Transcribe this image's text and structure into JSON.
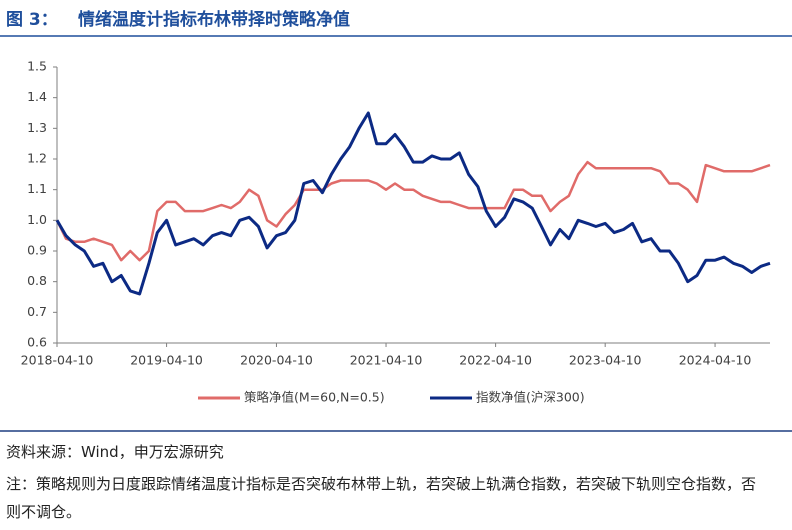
{
  "figure_label": "图 3：",
  "chart_data": {
    "type": "line",
    "title": "情绪温度计指标布林带择时策略净值",
    "x": [
      "2018-04-10",
      "2018-05-10",
      "2018-06-10",
      "2018-07-10",
      "2018-08-10",
      "2018-09-10",
      "2018-10-10",
      "2018-11-10",
      "2018-12-10",
      "2019-01-10",
      "2019-02-10",
      "2019-03-10",
      "2019-04-10",
      "2019-05-10",
      "2019-06-10",
      "2019-07-10",
      "2019-08-10",
      "2019-09-10",
      "2019-10-10",
      "2019-11-10",
      "2019-12-10",
      "2020-01-10",
      "2020-02-10",
      "2020-03-10",
      "2020-04-10",
      "2020-05-10",
      "2020-06-10",
      "2020-07-10",
      "2020-08-10",
      "2020-09-10",
      "2020-10-10",
      "2020-11-10",
      "2020-12-10",
      "2021-01-10",
      "2021-02-10",
      "2021-03-10",
      "2021-04-10",
      "2021-05-10",
      "2021-06-10",
      "2021-07-10",
      "2021-08-10",
      "2021-09-10",
      "2021-10-10",
      "2021-11-10",
      "2021-12-10",
      "2022-01-10",
      "2022-02-10",
      "2022-03-10",
      "2022-04-10",
      "2022-05-10",
      "2022-06-10",
      "2022-07-10",
      "2022-08-10",
      "2022-09-10",
      "2022-10-10",
      "2022-11-10",
      "2022-12-10",
      "2023-01-10",
      "2023-02-10",
      "2023-03-10",
      "2023-04-10",
      "2023-05-10",
      "2023-06-10",
      "2023-07-10",
      "2023-08-10",
      "2023-09-10",
      "2023-10-10",
      "2023-11-10",
      "2023-12-10",
      "2024-01-10",
      "2024-02-10",
      "2024-03-10",
      "2024-04-10",
      "2024-05-10",
      "2024-06-10",
      "2024-07-10",
      "2024-08-10",
      "2024-09-10",
      "2024-10-10"
    ],
    "series": [
      {
        "name": "策略净值(M=60,N=0.5)",
        "color": "#e06b69",
        "values": [
          1.0,
          0.94,
          0.93,
          0.93,
          0.94,
          0.93,
          0.92,
          0.87,
          0.9,
          0.87,
          0.9,
          1.03,
          1.06,
          1.06,
          1.03,
          1.03,
          1.03,
          1.04,
          1.05,
          1.04,
          1.06,
          1.1,
          1.08,
          1.0,
          0.98,
          1.02,
          1.05,
          1.1,
          1.1,
          1.1,
          1.12,
          1.13,
          1.13,
          1.13,
          1.13,
          1.12,
          1.1,
          1.12,
          1.1,
          1.1,
          1.08,
          1.07,
          1.06,
          1.06,
          1.05,
          1.04,
          1.04,
          1.04,
          1.04,
          1.04,
          1.1,
          1.1,
          1.08,
          1.08,
          1.03,
          1.06,
          1.08,
          1.15,
          1.19,
          1.17,
          1.17,
          1.17,
          1.17,
          1.17,
          1.17,
          1.17,
          1.16,
          1.12,
          1.12,
          1.1,
          1.06,
          1.18,
          1.17,
          1.16,
          1.16,
          1.16,
          1.16,
          1.17,
          1.18
        ]
      },
      {
        "name": "指数净值(沪深300)",
        "color": "#0c2a84",
        "values": [
          1.0,
          0.95,
          0.92,
          0.9,
          0.85,
          0.86,
          0.8,
          0.82,
          0.77,
          0.76,
          0.86,
          0.96,
          1.0,
          0.92,
          0.93,
          0.94,
          0.92,
          0.95,
          0.96,
          0.95,
          1.0,
          1.01,
          0.98,
          0.91,
          0.95,
          0.96,
          1.0,
          1.12,
          1.13,
          1.09,
          1.15,
          1.2,
          1.24,
          1.3,
          1.35,
          1.25,
          1.25,
          1.28,
          1.24,
          1.19,
          1.19,
          1.21,
          1.2,
          1.2,
          1.22,
          1.15,
          1.11,
          1.03,
          0.98,
          1.01,
          1.07,
          1.06,
          1.04,
          0.98,
          0.92,
          0.97,
          0.94,
          1.0,
          0.99,
          0.98,
          0.99,
          0.96,
          0.97,
          0.99,
          0.93,
          0.94,
          0.9,
          0.9,
          0.86,
          0.8,
          0.82,
          0.87,
          0.87,
          0.88,
          0.86,
          0.85,
          0.83,
          0.85,
          0.86
        ]
      }
    ],
    "xlim": [
      "2018-04-10",
      "2024-10-10"
    ],
    "xticks": [
      "2018-04-10",
      "2019-04-10",
      "2020-04-10",
      "2021-04-10",
      "2022-04-10",
      "2023-04-10",
      "2024-04-10"
    ],
    "ylim": [
      0.6,
      1.5
    ],
    "yticks": [
      0.6,
      0.7,
      0.8,
      0.9,
      {
        "value": 1,
        "label": "1.0"
      },
      1.1,
      1.2,
      1.3,
      1.4,
      1.5
    ],
    "legend": "bottom"
  },
  "source": "资料来源：Wind，申万宏源研究",
  "note": "注：策略规则为日度跟踪情绪温度计指标是否突破布林带上轨，若突破上轨满仓指数，若突破下轨则空仓指数，否则不调仓。"
}
